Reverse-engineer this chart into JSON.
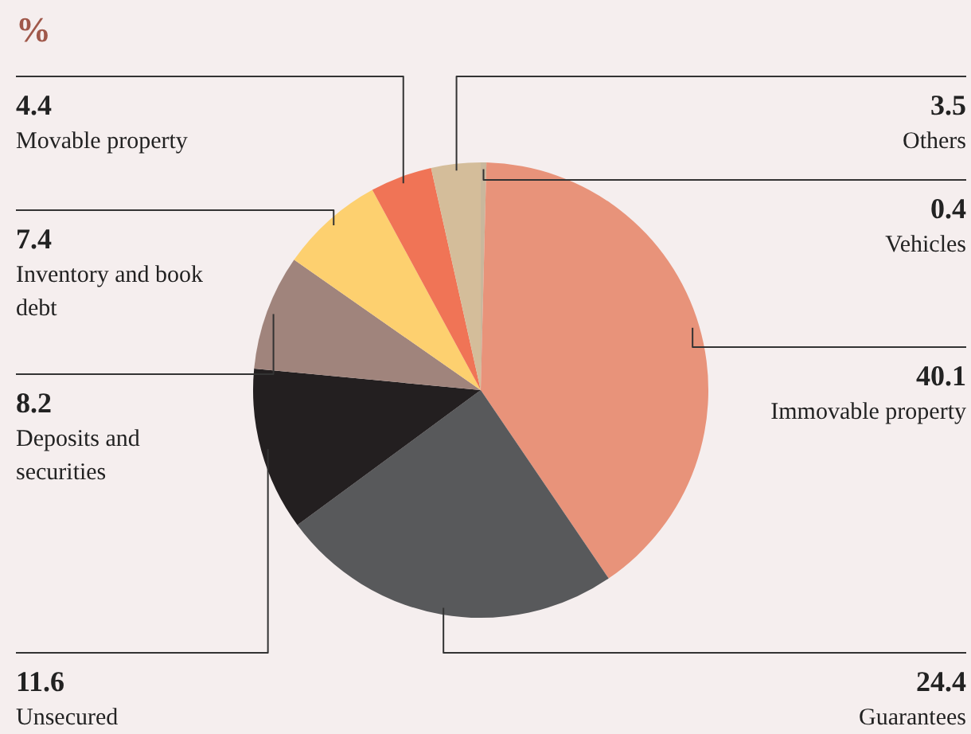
{
  "chart_data": {
    "type": "pie",
    "title": "%",
    "categories": [
      "Vehicles",
      "Immovable property",
      "Guarantees",
      "Unsecured",
      "Deposits and securities",
      "Inventory and book debt",
      "Movable property",
      "Others"
    ],
    "values": [
      0.4,
      40.1,
      24.4,
      11.6,
      8.2,
      7.4,
      4.4,
      3.5
    ],
    "colors": [
      "#c9b79c",
      "#e8937a",
      "#58595b",
      "#231f20",
      "#a0847c",
      "#fdd06f",
      "#f07456",
      "#d4bd9a"
    ],
    "data_labels": true,
    "legend": false
  }
}
